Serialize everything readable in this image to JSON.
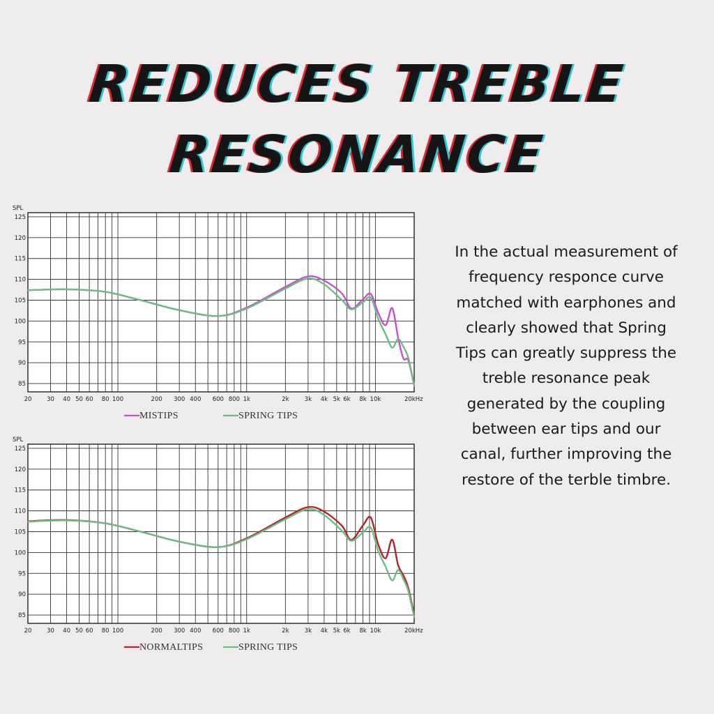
{
  "title": {
    "line1": "REDUCES TREBLE",
    "line2": "RESONANCE"
  },
  "description": "In the actual measurement of frequency responce curve matched with earphones and clearly showed that Spring Tips can greatly suppress the treble resonance peak generated by the coupling between ear tips and our canal, further improving the restore of the terble timbre.",
  "colors": {
    "mistips": "#c94fd1",
    "normaltips": "#b8222a",
    "springtips": "#6cbd84"
  },
  "chart_data": [
    {
      "type": "line",
      "ylabel": "SPL",
      "xlabel": "",
      "x_scale": "log",
      "xlim": [
        20,
        20000
      ],
      "ylim": [
        83,
        126
      ],
      "grid": true,
      "legend_position": "bottom",
      "x_ticks": [
        20,
        30,
        40,
        50,
        60,
        80,
        100,
        200,
        300,
        400,
        600,
        800,
        1000,
        2000,
        3000,
        4000,
        5000,
        6000,
        8000,
        10000,
        20000
      ],
      "x_tick_labels": [
        "20",
        "30",
        "40",
        "50",
        "60",
        "80",
        "100",
        "200",
        "300",
        "400",
        "600",
        "800",
        "1k",
        "2k",
        "3k",
        "4k",
        "5k",
        "6k",
        "8k",
        "10k",
        "20kHz"
      ],
      "y_ticks": [
        85,
        90,
        95,
        100,
        105,
        110,
        115,
        120,
        125
      ],
      "y_tick_labels": [
        "85",
        "90",
        "95",
        "100",
        "105",
        "110",
        "115",
        "120",
        "125"
      ],
      "series": [
        {
          "name": "MISTIPS",
          "color": "#c94fd1",
          "x": [
            20,
            40,
            80,
            150,
            300,
            600,
            1000,
            2000,
            3000,
            4000,
            5500,
            6500,
            8000,
            9200,
            10500,
            12000,
            13500,
            15000,
            16500,
            18000,
            20000
          ],
          "y": [
            107.4,
            107.6,
            107.0,
            105.0,
            102.6,
            101.2,
            103.2,
            108.2,
            110.7,
            109.7,
            106.6,
            103.0,
            105.2,
            106.5,
            102.0,
            99.0,
            103.1,
            96.0,
            91.0,
            90.6,
            84.5
          ]
        },
        {
          "name": "SPRING TIPS",
          "color": "#6cbd84",
          "x": [
            20,
            40,
            80,
            150,
            300,
            600,
            1000,
            2000,
            3000,
            4000,
            5500,
            6500,
            8000,
            9200,
            10500,
            12000,
            13500,
            15000,
            16500,
            18000,
            20000
          ],
          "y": [
            107.4,
            107.6,
            107.0,
            105.0,
            102.6,
            101.2,
            103.0,
            107.8,
            110.2,
            108.8,
            105.0,
            102.8,
            104.5,
            105.6,
            100.6,
            96.8,
            93.6,
            95.7,
            93.8,
            91.2,
            84.5
          ]
        }
      ]
    },
    {
      "type": "line",
      "ylabel": "SPL",
      "xlabel": "",
      "x_scale": "log",
      "xlim": [
        20,
        20000
      ],
      "ylim": [
        83,
        126
      ],
      "grid": true,
      "legend_position": "bottom",
      "x_ticks": [
        20,
        30,
        40,
        50,
        60,
        80,
        100,
        200,
        300,
        400,
        600,
        800,
        1000,
        2000,
        3000,
        4000,
        5000,
        6000,
        8000,
        10000,
        20000
      ],
      "x_tick_labels": [
        "20",
        "30",
        "40",
        "50",
        "60",
        "80",
        "100",
        "200",
        "300",
        "400",
        "600",
        "800",
        "1k",
        "2k",
        "3k",
        "4k",
        "5k",
        "6k",
        "8k",
        "10k",
        "20kHz"
      ],
      "y_ticks": [
        85,
        90,
        95,
        100,
        105,
        110,
        115,
        120,
        125
      ],
      "y_tick_labels": [
        "85",
        "90",
        "95",
        "100",
        "105",
        "110",
        "115",
        "120",
        "125"
      ],
      "series": [
        {
          "name": "NORMALTIPS",
          "color": "#b8222a",
          "x": [
            20,
            40,
            80,
            150,
            300,
            600,
            1000,
            2000,
            3000,
            4000,
            5500,
            6500,
            8000,
            9200,
            10500,
            12000,
            13500,
            15000,
            16500,
            18000,
            20000
          ],
          "y": [
            107.5,
            107.8,
            107.0,
            105.0,
            102.6,
            101.3,
            103.4,
            108.4,
            110.9,
            109.8,
            106.4,
            103.0,
            106.5,
            108.4,
            102.0,
            98.6,
            103.1,
            97.0,
            94.5,
            91.5,
            85.0
          ]
        },
        {
          "name": "SPRING TIPS",
          "color": "#6cbd84",
          "x": [
            20,
            40,
            80,
            150,
            300,
            600,
            1000,
            2000,
            3000,
            4000,
            5500,
            6500,
            8000,
            9200,
            10500,
            12000,
            13500,
            15000,
            16500,
            18000,
            20000
          ],
          "y": [
            107.4,
            107.7,
            107.0,
            105.0,
            102.6,
            101.3,
            103.2,
            108.0,
            110.4,
            109.0,
            105.2,
            102.8,
            104.8,
            106.0,
            100.4,
            96.6,
            93.3,
            95.8,
            93.6,
            90.8,
            84.5
          ]
        }
      ]
    }
  ]
}
